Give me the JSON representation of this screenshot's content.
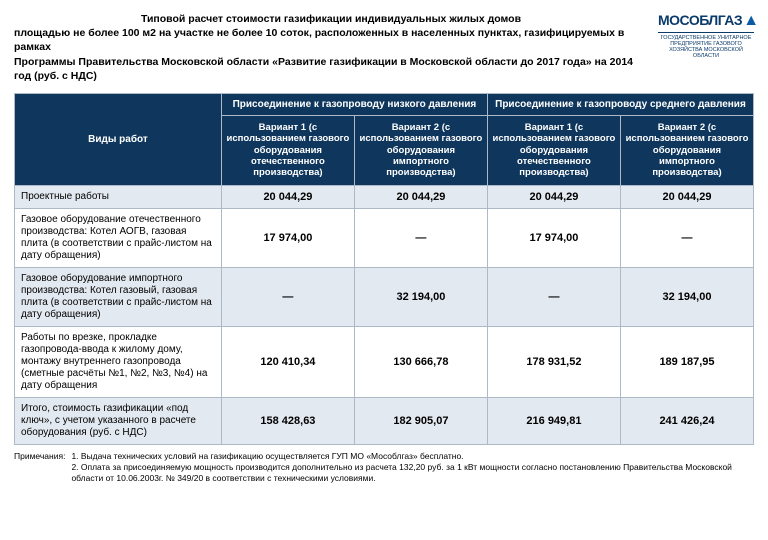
{
  "title": {
    "line1": "Типовой расчет стоимости газификации индивидуальных жилых домов",
    "line2": "площадью не более 100 м2 на участке не более 10 соток, расположенных в населенных пунктах, газифицируемых в рамках",
    "line3": "Программы Правительства Московской области «Развитие газификации в Московской области до 2017 года» на 2014 год (руб. с НДС)"
  },
  "logo": {
    "name": "МОСОБЛГАЗ",
    "sub": "ГОСУДАРСТВЕННОЕ УНИТАРНОЕ ПРЕДПРИЯТИЕ ГАЗОВОГО ХОЗЯЙСТВА МОСКОВСКОЙ ОБЛАСТИ"
  },
  "table": {
    "col_work": "Виды работ",
    "group_low": "Присоединение к газопроводу низкого давления",
    "group_mid": "Присоединение к газопроводу среднего давления",
    "variant1": "Вариант 1\n(с использованием газового оборудования отечественного производства)",
    "variant2": "Вариант 2\n(с использованием газового оборудования импортного производства)",
    "rows": [
      {
        "label": "Проектные работы",
        "v": [
          "20 044,29",
          "20 044,29",
          "20 044,29",
          "20 044,29"
        ],
        "band": true
      },
      {
        "label": "Газовое оборудование отечественного производства: Котел АОГВ, газовая плита (в соответствии с прайс-листом на дату обращения)",
        "v": [
          "17 974,00",
          "—",
          "17 974,00",
          "—"
        ],
        "band": false
      },
      {
        "label": "Газовое оборудование импортного производства: Котел газовый, газовая плита (в соответствии с прайс-листом на дату обращения)",
        "v": [
          "—",
          "32 194,00",
          "—",
          "32 194,00"
        ],
        "band": true
      },
      {
        "label": "Работы по врезке, прокладке газопровода-ввода к жилому дому, монтажу внутреннего газопровода (сметные расчёты №1, №2, №3, №4) на дату обращения",
        "v": [
          "120 410,34",
          "130 666,78",
          "178 931,52",
          "189 187,95"
        ],
        "band": false
      },
      {
        "label": "Итого, стоимость газификации «под ключ», с учетом указанного в расчете оборудования (руб. с НДС)",
        "v": [
          "158 428,63",
          "182 905,07",
          "216 949,81",
          "241 426,24"
        ],
        "band": true
      }
    ]
  },
  "notes": {
    "label": "Примечания:",
    "n1": "1. Выдача технических условий на газификацию осуществляется ГУП МО «Мособлгаз» бесплатно.",
    "n2": "2. Оплата за присоединяемую мощность производится дополнительно из расчета 132,20 руб. за 1 кВт мощности согласно постановлению Правительства Московской области от 10.06.2003г. № 349/20 в соответствии с техническими условиями."
  },
  "colors": {
    "header_bg": "#0f375d",
    "band_bg": "#e3e9f0",
    "border": "#aeb9c7"
  }
}
